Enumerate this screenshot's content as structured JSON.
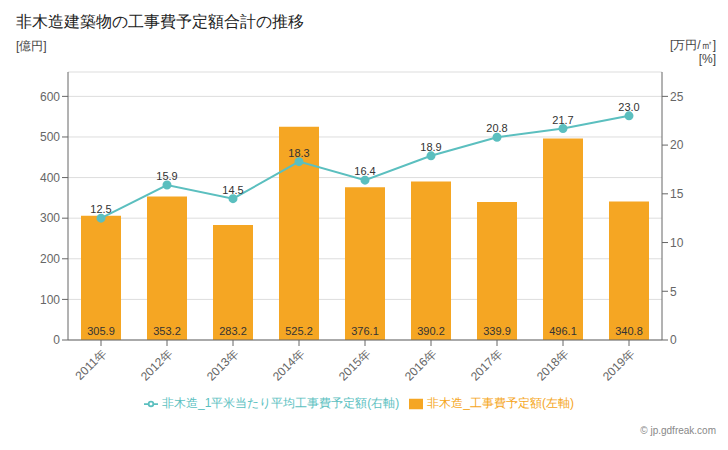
{
  "chart_data": {
    "type": "bar",
    "title": "非木造建築物の工事費予定額合計の推移",
    "categories": [
      "2011年",
      "2012年",
      "2013年",
      "2014年",
      "2015年",
      "2016年",
      "2017年",
      "2018年",
      "2019年"
    ],
    "series": [
      {
        "name": "非木造_工事費予定額(左軸)",
        "type": "bar",
        "color": "#f5a623",
        "values": [
          305.9,
          353.2,
          283.2,
          525.2,
          376.1,
          390.2,
          339.9,
          496.1,
          340.8
        ]
      },
      {
        "name": "非木造_1平米当たり平均工事費予定額(右軸)",
        "type": "line",
        "axis": "y2",
        "color": "#5bbfbf",
        "marker": "circle",
        "values": [
          12.5,
          15.9,
          14.5,
          18.3,
          16.4,
          18.9,
          20.8,
          21.7,
          23.0
        ],
        "value_labels": [
          "12.5",
          "15.9",
          "14.5",
          "18.3",
          "16.4",
          "18.9",
          "20.8",
          "21.7",
          "23.0"
        ]
      }
    ],
    "ylabel": "[億円]",
    "y2label": "[万円/㎡]",
    "annotations": [
      "[%]",
      "© jp.gdfreak.com"
    ],
    "ylim": [
      0,
      660
    ],
    "yticks": [
      0,
      100,
      200,
      300,
      400,
      500,
      600
    ],
    "y2lim": [
      0,
      27.5
    ],
    "y2ticks": [
      0,
      5,
      10,
      15,
      20,
      25
    ],
    "grid": true,
    "legend": "bottom",
    "data_labels": true
  }
}
